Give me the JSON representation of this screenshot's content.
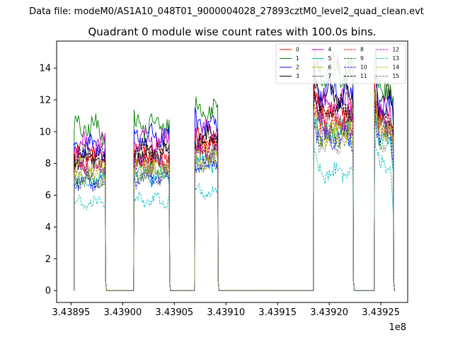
{
  "chart_data": {
    "type": "line",
    "suptitle": "Data file: modeM0/AS1A10_048T01_9000004028_27893cztM0_level2_quad_clean.evt",
    "title": "Quadrant 0 module wise count rates with 100.0s bins.",
    "xlabel": "",
    "ylabel": "",
    "x_offset_label": "1e8",
    "xlim": [
      343893600,
      343927600
    ],
    "ylim": [
      -0.75,
      15.7
    ],
    "x_ticks": [
      343895000,
      343900000,
      343905000,
      343910000,
      343915000,
      343920000,
      343925000
    ],
    "x_tick_labels": [
      "3.43895",
      "3.43900",
      "3.43905",
      "3.43910",
      "3.43915",
      "3.43920",
      "3.43925"
    ],
    "y_ticks": [
      0,
      2,
      4,
      6,
      8,
      10,
      12,
      14
    ],
    "y_tick_labels": [
      "0",
      "2",
      "4",
      "6",
      "8",
      "10",
      "12",
      "14"
    ],
    "bin_seconds": 100,
    "gti_segments": [
      {
        "start": 343895300,
        "end": 343898300
      },
      {
        "start": 343901100,
        "end": 343904500
      },
      {
        "start": 343907000,
        "end": 343909200
      },
      {
        "start": 343918500,
        "end": 343922300
      },
      {
        "start": 343924400,
        "end": 343926200
      }
    ],
    "legend_location": "upper right",
    "series": [
      {
        "name": "0",
        "color": "#ff0000",
        "dashed": false,
        "levels": [
          8.5,
          8.8,
          9.5,
          11.3,
          10.6
        ]
      },
      {
        "name": "1",
        "color": "#008000",
        "dashed": false,
        "levels": [
          10.2,
          10.4,
          11.3,
          13.8,
          13.0
        ]
      },
      {
        "name": "2",
        "color": "#0000ff",
        "dashed": false,
        "levels": [
          9.0,
          9.7,
          10.5,
          12.4,
          11.8
        ]
      },
      {
        "name": "3",
        "color": "#000000",
        "dashed": false,
        "levels": [
          8.2,
          8.6,
          9.6,
          12.4,
          12.0
        ]
      },
      {
        "name": "4",
        "color": "#bf00bf",
        "dashed": false,
        "levels": [
          9.2,
          9.4,
          10.0,
          11.6,
          11.2
        ]
      },
      {
        "name": "5",
        "color": "#00bfbf",
        "dashed": false,
        "levels": [
          7.0,
          7.2,
          8.2,
          10.0,
          9.6
        ]
      },
      {
        "name": "6",
        "color": "#bfbf00",
        "dashed": false,
        "levels": [
          7.7,
          7.9,
          8.8,
          10.3,
          10.2
        ]
      },
      {
        "name": "7",
        "color": "#808080",
        "dashed": false,
        "levels": [
          7.9,
          8.1,
          8.6,
          10.6,
          10.4
        ]
      },
      {
        "name": "8",
        "color": "#ff0000",
        "dashed": true,
        "levels": [
          8.2,
          8.3,
          9.0,
          10.9,
          10.6
        ]
      },
      {
        "name": "9",
        "color": "#008000",
        "dashed": true,
        "levels": [
          7.0,
          7.4,
          8.2,
          9.8,
          9.8
        ]
      },
      {
        "name": "10",
        "color": "#0000ff",
        "dashed": true,
        "levels": [
          6.8,
          7.0,
          7.9,
          9.6,
          9.8
        ]
      },
      {
        "name": "11",
        "color": "#000000",
        "dashed": true,
        "levels": [
          8.5,
          8.8,
          9.4,
          11.4,
          11.0
        ]
      },
      {
        "name": "12",
        "color": "#bf00bf",
        "dashed": true,
        "levels": [
          7.6,
          8.0,
          8.8,
          10.4,
          10.6
        ]
      },
      {
        "name": "13",
        "color": "#00bfbf",
        "dashed": true,
        "levels": [
          5.5,
          5.7,
          6.2,
          7.4,
          8.0
        ]
      },
      {
        "name": "14",
        "color": "#bfbf00",
        "dashed": true,
        "levels": [
          7.2,
          7.6,
          8.2,
          9.8,
          10.2
        ]
      },
      {
        "name": "15",
        "color": "#808080",
        "dashed": true,
        "levels": [
          7.0,
          7.3,
          8.0,
          9.3,
          9.4
        ]
      }
    ]
  }
}
